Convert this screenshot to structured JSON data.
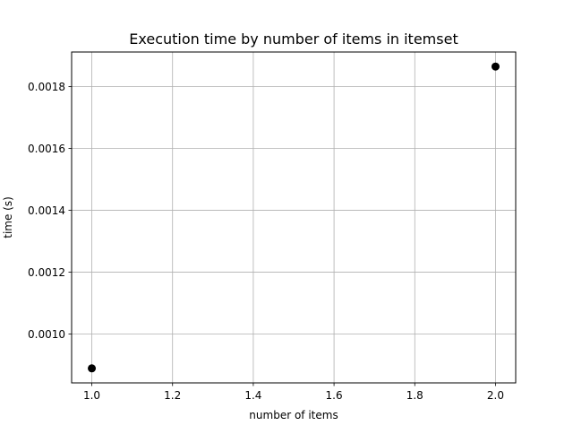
{
  "chart_data": {
    "type": "scatter",
    "title": "Execution time by number of items in itemset",
    "xlabel": "number of items",
    "ylabel": "time (s)",
    "xlim": [
      0.95,
      2.05
    ],
    "ylim": [
      0.000842,
      0.001912
    ],
    "x_ticks": [
      1.0,
      1.2,
      1.4,
      1.6,
      1.8,
      2.0
    ],
    "x_tick_labels": [
      "1.0",
      "1.2",
      "1.4",
      "1.6",
      "1.8",
      "2.0"
    ],
    "y_ticks": [
      0.001,
      0.0012,
      0.0014,
      0.0016,
      0.0018
    ],
    "y_tick_labels": [
      "0.0010",
      "0.0012",
      "0.0014",
      "0.0016",
      "0.0018"
    ],
    "grid": true,
    "series": [
      {
        "color": "#000000",
        "points": [
          {
            "x": 1.0,
            "y": 0.000889
          },
          {
            "x": 2.0,
            "y": 0.001865
          }
        ]
      }
    ]
  }
}
